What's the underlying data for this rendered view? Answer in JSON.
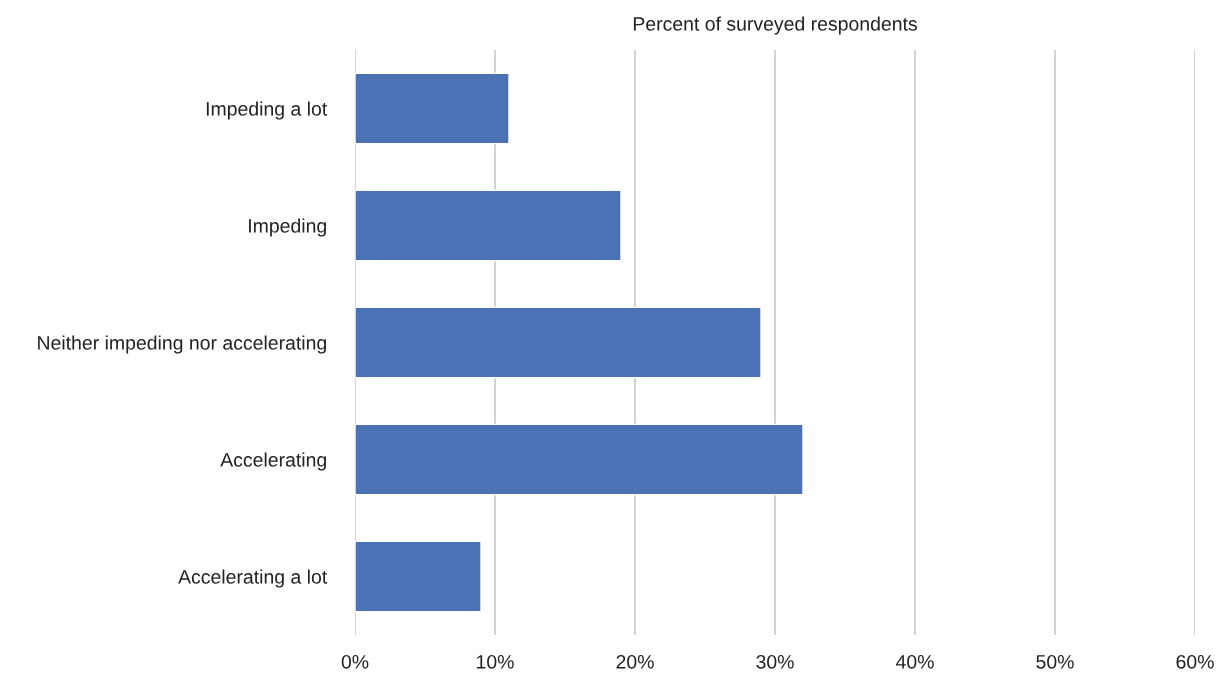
{
  "chart_data": {
    "type": "bar",
    "orientation": "horizontal",
    "xlabel": "Percent of surveyed respondents",
    "categories": [
      "Impeding a lot",
      "Impeding",
      "Neither impeding nor accelerating",
      "Accelerating",
      "Accelerating a lot"
    ],
    "values": [
      11,
      19,
      29,
      32,
      9
    ],
    "color": "#4a72b5",
    "xlim": [
      0,
      60
    ],
    "xticks": [
      {
        "value": 0,
        "label": "0%"
      },
      {
        "value": 10,
        "label": "10%"
      },
      {
        "value": 20,
        "label": "20%"
      },
      {
        "value": 30,
        "label": "30%"
      },
      {
        "value": 40,
        "label": "40%"
      },
      {
        "value": 50,
        "label": "50%"
      },
      {
        "value": 60,
        "label": "60%"
      }
    ],
    "grid": "x",
    "legend": false
  }
}
